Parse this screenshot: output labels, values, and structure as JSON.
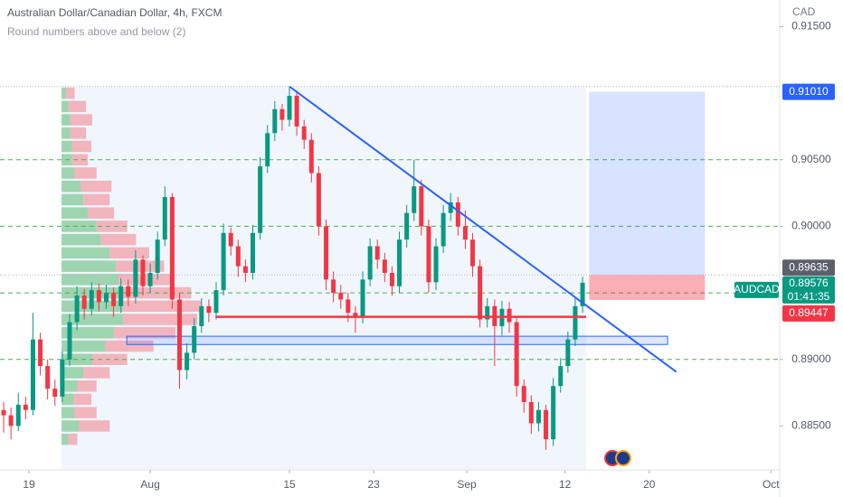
{
  "chart_data": {
    "type": "candlestick",
    "title": "Australian Dollar/Canadian Dollar, 4h, FXCM",
    "subtitle": "Round numbers above and below (2)",
    "currency": "CAD",
    "symbol": "AUDCAD",
    "countdown": "01:41:35",
    "up_color": "#089981",
    "down_color": "#f23645",
    "open": [
      0.8862,
      0.8858,
      0.885,
      0.8866,
      0.8862,
      0.8915,
      0.8895,
      0.8878,
      0.8872,
      0.89,
      0.8928,
      0.8948,
      0.8938,
      0.8952,
      0.8943,
      0.895,
      0.894,
      0.8955,
      0.8947,
      0.8975,
      0.8955,
      0.8965,
      0.899,
      0.9022,
      0.8945,
      0.8892,
      0.8905,
      0.8925,
      0.894,
      0.8935,
      0.8952,
      0.8995,
      0.8985,
      0.897,
      0.8965,
      0.8995,
      0.9045,
      0.907,
      0.9088,
      0.908,
      0.9098,
      0.9075,
      0.9065,
      0.904,
      0.9,
      0.896,
      0.895,
      0.8945,
      0.8935,
      0.8932,
      0.896,
      0.8985,
      0.8975,
      0.8965,
      0.8955,
      0.899,
      0.901,
      0.903,
      0.9,
      0.8958,
      0.8985,
      0.901,
      0.9018,
      0.9,
      0.899,
      0.897,
      0.893,
      0.894,
      0.8925,
      0.8938,
      0.8928,
      0.888,
      0.8868,
      0.8852,
      0.8862,
      0.884,
      0.888,
      0.8895,
      0.8915,
      0.894
    ],
    "high": [
      0.8868,
      0.8864,
      0.8875,
      0.8872,
      0.8935,
      0.892,
      0.89,
      0.8885,
      0.8906,
      0.8934,
      0.8955,
      0.8953,
      0.8958,
      0.8957,
      0.8956,
      0.8954,
      0.8961,
      0.896,
      0.8982,
      0.8978,
      0.8972,
      0.8996,
      0.903,
      0.9025,
      0.895,
      0.8912,
      0.8931,
      0.8946,
      0.8945,
      0.8958,
      0.9002,
      0.8999,
      0.899,
      0.8975,
      0.9001,
      0.9052,
      0.9076,
      0.9094,
      0.9092,
      0.9105,
      0.9102,
      0.908,
      0.907,
      0.9045,
      0.9005,
      0.8966,
      0.8956,
      0.895,
      0.894,
      0.8966,
      0.8991,
      0.899,
      0.898,
      0.897,
      0.8996,
      0.9016,
      0.905,
      0.9035,
      0.9005,
      0.8991,
      0.9016,
      0.9025,
      0.9022,
      0.9012,
      0.8995,
      0.8975,
      0.8946,
      0.8945,
      0.8944,
      0.8943,
      0.8932,
      0.8885,
      0.8873,
      0.8868,
      0.8866,
      0.8886,
      0.8901,
      0.8921,
      0.8946,
      0.8962
    ],
    "low": [
      0.8845,
      0.884,
      0.8846,
      0.8855,
      0.8858,
      0.8888,
      0.887,
      0.8865,
      0.8868,
      0.8895,
      0.8922,
      0.893,
      0.8933,
      0.8936,
      0.8938,
      0.8932,
      0.8935,
      0.894,
      0.8942,
      0.8948,
      0.895,
      0.896,
      0.8985,
      0.8938,
      0.8878,
      0.8885,
      0.89,
      0.892,
      0.8928,
      0.893,
      0.8948,
      0.8978,
      0.8962,
      0.8958,
      0.896,
      0.899,
      0.904,
      0.9064,
      0.9072,
      0.9075,
      0.9068,
      0.9058,
      0.9033,
      0.8993,
      0.8952,
      0.8943,
      0.8938,
      0.8928,
      0.892,
      0.8927,
      0.8955,
      0.8968,
      0.8958,
      0.8948,
      0.895,
      0.8984,
      0.9004,
      0.8993,
      0.895,
      0.8952,
      0.898,
      0.9004,
      0.8993,
      0.8983,
      0.8962,
      0.8924,
      0.8924,
      0.8895,
      0.8918,
      0.892,
      0.8872,
      0.886,
      0.8844,
      0.8846,
      0.8832,
      0.8835,
      0.8875,
      0.889,
      0.891,
      0.8935
    ],
    "close": [
      0.8858,
      0.885,
      0.8866,
      0.8862,
      0.8915,
      0.8895,
      0.8878,
      0.8872,
      0.89,
      0.8928,
      0.8948,
      0.8938,
      0.8952,
      0.8943,
      0.895,
      0.894,
      0.8955,
      0.8947,
      0.8975,
      0.8955,
      0.8965,
      0.899,
      0.9022,
      0.8945,
      0.8892,
      0.8905,
      0.8925,
      0.894,
      0.8935,
      0.8952,
      0.8995,
      0.8985,
      0.897,
      0.8965,
      0.8995,
      0.9045,
      0.907,
      0.9088,
      0.908,
      0.9098,
      0.9075,
      0.9065,
      0.904,
      0.9,
      0.896,
      0.895,
      0.8945,
      0.8935,
      0.8932,
      0.896,
      0.8985,
      0.8975,
      0.8965,
      0.8955,
      0.899,
      0.901,
      0.903,
      0.9,
      0.8958,
      0.8985,
      0.901,
      0.9018,
      0.9,
      0.899,
      0.897,
      0.893,
      0.894,
      0.8925,
      0.8938,
      0.8928,
      0.888,
      0.8868,
      0.8852,
      0.8862,
      0.884,
      0.888,
      0.8895,
      0.8915,
      0.894,
      0.89576
    ],
    "xlim": [
      -0.5,
      105.9
    ],
    "xticks": [
      {
        "value": 3.45,
        "label": "19"
      },
      {
        "value": 20.0,
        "label": "Aug"
      },
      {
        "value": 39.0,
        "label": "15"
      },
      {
        "value": 50.5,
        "label": "23"
      },
      {
        "value": 63.2,
        "label": "Sep"
      },
      {
        "value": 76.6,
        "label": "12"
      },
      {
        "value": 88.1,
        "label": "20"
      },
      {
        "value": 104.7,
        "label": "Oct"
      }
    ],
    "ylim": [
      0.8817,
      0.917
    ],
    "yticks": [
      {
        "value": 0.915,
        "label": "0.91500"
      },
      {
        "value": 0.905,
        "label": "0.90500"
      },
      {
        "value": 0.9,
        "label": "0.90000"
      },
      {
        "value": 0.89,
        "label": "0.89000"
      },
      {
        "value": 0.885,
        "label": "0.88500"
      }
    ],
    "round_levels": {
      "color": "#4caf50",
      "values": [
        0.905,
        0.9,
        0.895,
        0.89
      ]
    },
    "range": {
      "x": [
        7.9,
        79.5
      ],
      "top": 0.9105
    },
    "volume_profile": {
      "prices": [
        0.884,
        0.885,
        0.886,
        0.887,
        0.888,
        0.889,
        0.89,
        0.891,
        0.892,
        0.893,
        0.894,
        0.895,
        0.896,
        0.897,
        0.898,
        0.899,
        0.9,
        0.901,
        0.902,
        0.903,
        0.904,
        0.905,
        0.906,
        0.907,
        0.908,
        0.909,
        0.91
      ],
      "up": [
        8,
        20,
        15,
        14,
        18,
        25,
        35,
        50,
        60,
        70,
        70,
        68,
        65,
        62,
        55,
        45,
        40,
        30,
        25,
        22,
        15,
        12,
        12,
        10,
        10,
        8,
        5
      ],
      "down": [
        10,
        35,
        25,
        20,
        22,
        30,
        40,
        55,
        70,
        85,
        90,
        80,
        60,
        55,
        45,
        40,
        35,
        30,
        30,
        35,
        25,
        18,
        22,
        18,
        25,
        20,
        10
      ]
    },
    "trendline": {
      "color": "#2962ff",
      "x": [
        39,
        91.8
      ],
      "y": [
        0.9105,
        0.88906
      ]
    },
    "support_line": {
      "color": "#f23645",
      "x": [
        28.9,
        79.5
      ],
      "y": 0.8932
    },
    "zone": {
      "x": [
        16.8,
        90.6
      ],
      "y": [
        0.89112,
        0.89174
      ]
    },
    "position": {
      "x": [
        79.9,
        95.7
      ],
      "target": {
        "value": 0.9101,
        "label": "0.91010"
      },
      "entry": 0.89635,
      "stop": 0.89447
    },
    "last_price": 0.89576
  }
}
